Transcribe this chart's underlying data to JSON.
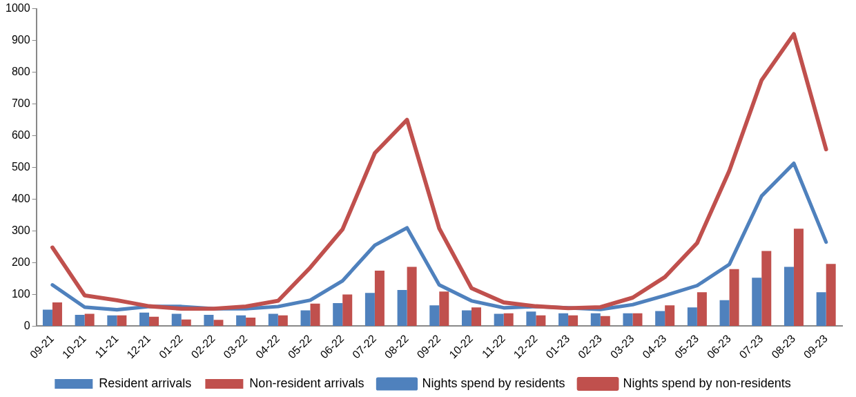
{
  "chart_data": {
    "type": "bar",
    "categories": [
      "09-21",
      "10-21",
      "11-21",
      "12-21",
      "01-22",
      "02-22",
      "03-22",
      "04-22",
      "05-22",
      "06-22",
      "07-22",
      "08-22",
      "09-22",
      "10-22",
      "11-22",
      "12-22",
      "01-23",
      "02-23",
      "03-23",
      "04-23",
      "05-23",
      "06-23",
      "07-23",
      "08-23",
      "09-23"
    ],
    "series": [
      {
        "name": "Resident arrivals",
        "color": "#4f81bd",
        "values": [
          52,
          36,
          34,
          43,
          39,
          36,
          34,
          39,
          50,
          73,
          105,
          114,
          66,
          50,
          39,
          46,
          41,
          41,
          41,
          48,
          59,
          82,
          153,
          187,
          107
        ]
      },
      {
        "name": "Non-resident arrivals",
        "color": "#c0504d",
        "values": [
          75,
          39,
          34,
          30,
          21,
          20,
          27,
          34,
          71,
          100,
          175,
          187,
          109,
          59,
          41,
          34,
          34,
          32,
          41,
          66,
          107,
          180,
          237,
          307,
          196
        ]
      },
      {
        "name": "Nights spend by residents",
        "type": "line",
        "color": "#4f81bd",
        "values": [
          130,
          60,
          52,
          62,
          62,
          55,
          55,
          62,
          82,
          143,
          255,
          310,
          130,
          80,
          58,
          62,
          58,
          53,
          68,
          97,
          128,
          195,
          410,
          513,
          265
        ]
      },
      {
        "name": "Nights spend by non-residents",
        "type": "line",
        "color": "#c0504d",
        "values": [
          248,
          97,
          82,
          63,
          55,
          55,
          62,
          80,
          185,
          305,
          545,
          650,
          308,
          120,
          75,
          63,
          57,
          60,
          90,
          155,
          262,
          490,
          775,
          920,
          557
        ]
      }
    ],
    "ylim": [
      0,
      1000
    ],
    "yticks": [
      0,
      100,
      200,
      300,
      400,
      500,
      600,
      700,
      800,
      900,
      1000
    ],
    "grid": false,
    "legend": "bottom",
    "marker": "none"
  }
}
